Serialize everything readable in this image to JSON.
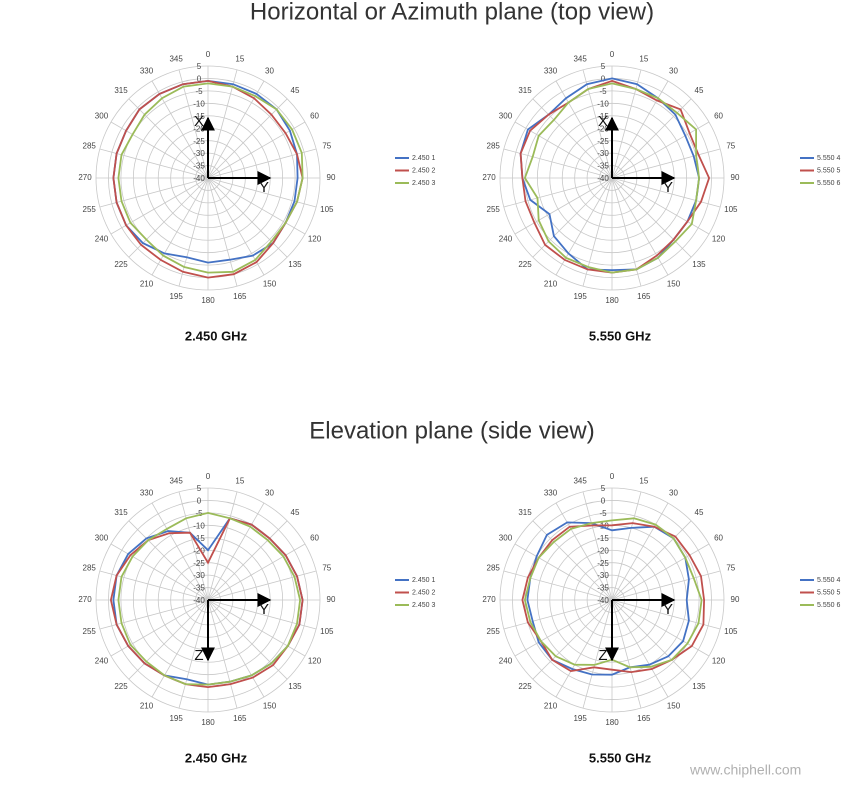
{
  "headings": [
    "Horizontal or Azimuth plane (top view)",
    "Elevation plane (side view)"
  ],
  "watermark": "www.chiphell.com",
  "chart_data": [
    {
      "type": "polar",
      "title": "2.450 GHz",
      "x": [
        0,
        15,
        30,
        45,
        60,
        75,
        90,
        105,
        120,
        135,
        150,
        165,
        180,
        195,
        210,
        225,
        240,
        255,
        270,
        285,
        300,
        315,
        330,
        345
      ],
      "xticks": [
        0,
        15,
        30,
        45,
        60,
        75,
        90,
        105,
        120,
        135,
        150,
        165,
        180,
        195,
        210,
        225,
        240,
        255,
        270,
        285,
        300,
        315,
        330,
        345
      ],
      "ylim": [
        -40,
        5
      ],
      "yticks": [
        5,
        0,
        -5,
        -10,
        -15,
        -20,
        -25,
        -30,
        -35,
        -40
      ],
      "grid": true,
      "axis_arrows": {
        "up": "X",
        "right": "Y"
      },
      "series": [
        {
          "name": "2.450 1",
          "color": "#4472c4",
          "values": [
            -1,
            -1,
            -1,
            -1,
            -2,
            -3,
            -4,
            -4,
            -4,
            -3,
            -4,
            -6,
            -6,
            -7,
            -5,
            -3,
            -2,
            -2,
            -2,
            -2,
            -2,
            -1,
            -1,
            -1
          ]
        },
        {
          "name": "2.450 2",
          "color": "#c0504d",
          "values": [
            -1,
            -2,
            -3,
            -4,
            -4,
            -3,
            -2,
            -3,
            -4,
            -3,
            -1,
            0,
            0,
            -1,
            -2,
            -2,
            -2,
            -2,
            -2,
            -2,
            -2,
            -1,
            -1,
            -1
          ]
        },
        {
          "name": "2.450 3",
          "color": "#9bbb59",
          "values": [
            -2,
            -2,
            -2,
            -1,
            -1,
            -1,
            -2,
            -3,
            -4,
            -4,
            -2,
            -1,
            -2,
            -3,
            -4,
            -5,
            -4,
            -4,
            -4,
            -4,
            -5,
            -4,
            -3,
            -2
          ]
        }
      ]
    },
    {
      "type": "polar",
      "title": "5.550 GHz",
      "x": [
        0,
        15,
        30,
        45,
        60,
        75,
        90,
        105,
        120,
        135,
        150,
        165,
        180,
        195,
        210,
        225,
        240,
        255,
        270,
        285,
        300,
        315,
        330,
        345
      ],
      "xticks": [
        0,
        15,
        30,
        45,
        60,
        75,
        90,
        105,
        120,
        135,
        150,
        165,
        180,
        195,
        210,
        225,
        240,
        255,
        270,
        285,
        300,
        315,
        330,
        345
      ],
      "ylim": [
        -40,
        5
      ],
      "yticks": [
        5,
        0,
        -5,
        -10,
        -15,
        -20,
        -25,
        -30,
        -35,
        -40
      ],
      "grid": true,
      "axis_arrows": {
        "up": "X",
        "right": "Y"
      },
      "series": [
        {
          "name": "5.550 4",
          "color": "#4472c4",
          "values": [
            0,
            -1,
            -3,
            -4,
            -6,
            -6,
            -5,
            -5,
            -5,
            -5,
            -3,
            -2,
            -3,
            -2,
            -5,
            -7,
            -11,
            -6,
            -4,
            -2,
            -1,
            -4,
            -3,
            -1
          ]
        },
        {
          "name": "5.550 5",
          "color": "#c0504d",
          "values": [
            -1,
            -3,
            -4,
            -1,
            -4,
            -4,
            -1,
            -3,
            -5,
            -5,
            -4,
            -2,
            -2,
            -2,
            -2,
            -2,
            -4,
            -4,
            -4,
            -2,
            -2,
            -4,
            -5,
            -3
          ]
        },
        {
          "name": "5.550 6",
          "color": "#9bbb59",
          "values": [
            -2,
            -3,
            -3,
            -3,
            -1,
            -5,
            -5,
            -5,
            -3,
            -4,
            -3,
            -2,
            -2,
            -3,
            -3,
            -4,
            -6,
            -9,
            -5,
            -7,
            -6,
            -7,
            -5,
            -3
          ]
        }
      ]
    },
    {
      "type": "polar",
      "title": "2.450 GHz",
      "x": [
        0,
        15,
        30,
        45,
        60,
        75,
        90,
        105,
        120,
        135,
        150,
        165,
        180,
        195,
        210,
        225,
        240,
        255,
        270,
        285,
        300,
        315,
        330,
        345
      ],
      "xticks": [
        0,
        15,
        30,
        45,
        60,
        75,
        90,
        105,
        120,
        135,
        150,
        165,
        180,
        195,
        210,
        225,
        240,
        255,
        270,
        285,
        300,
        315,
        330,
        345
      ],
      "ylim": [
        -40,
        5
      ],
      "yticks": [
        5,
        0,
        -5,
        -10,
        -15,
        -20,
        -25,
        -30,
        -35,
        -40
      ],
      "grid": true,
      "axis_arrows": {
        "right": "Y",
        "down": "Z"
      },
      "series": [
        {
          "name": "2.450 1",
          "color": "#4472c4",
          "values": [
            -20,
            -6,
            -5,
            -5,
            -4,
            -3,
            -2,
            -2,
            -3,
            -4,
            -5,
            -6,
            -6,
            -7,
            -5,
            -4,
            -3,
            -2,
            -2,
            -2,
            -3,
            -5,
            -8,
            -12
          ]
        },
        {
          "name": "2.450 2",
          "color": "#c0504d",
          "values": [
            -25,
            -6,
            -5,
            -5,
            -4,
            -3,
            -2,
            -2,
            -3,
            -3,
            -4,
            -5,
            -5,
            -5,
            -5,
            -4,
            -3,
            -2,
            -1,
            -2,
            -4,
            -6,
            -9,
            -12
          ]
        },
        {
          "name": "2.450 3",
          "color": "#9bbb59",
          "values": [
            -5,
            -6,
            -6,
            -6,
            -5,
            -4,
            -3,
            -3,
            -3,
            -4,
            -5,
            -6,
            -6,
            -5,
            -5,
            -5,
            -4,
            -4,
            -4,
            -4,
            -5,
            -6,
            -7,
            -6
          ]
        }
      ]
    },
    {
      "type": "polar",
      "title": "5.550 GHz",
      "x": [
        0,
        15,
        30,
        45,
        60,
        75,
        90,
        105,
        120,
        135,
        150,
        165,
        180,
        195,
        210,
        225,
        240,
        255,
        270,
        285,
        300,
        315,
        330,
        345
      ],
      "xticks": [
        0,
        15,
        30,
        45,
        60,
        75,
        90,
        105,
        120,
        135,
        150,
        165,
        180,
        195,
        210,
        225,
        240,
        255,
        270,
        285,
        300,
        315,
        330,
        345
      ],
      "ylim": [
        -40,
        5
      ],
      "yticks": [
        5,
        0,
        -5,
        -10,
        -15,
        -20,
        -25,
        -30,
        -35,
        -40
      ],
      "grid": true,
      "axis_arrows": {
        "right": "Y",
        "down": "Z"
      },
      "series": [
        {
          "name": "5.550 4",
          "color": "#4472c4",
          "values": [
            -12,
            -10,
            -6,
            -5,
            -6,
            -8,
            -10,
            -8,
            -7,
            -8,
            -10,
            -12,
            -10,
            -9,
            -8,
            -6,
            -6,
            -7,
            -6,
            -6,
            -5,
            -3,
            -4,
            -8
          ]
        },
        {
          "name": "5.550 5",
          "color": "#c0504d",
          "values": [
            -10,
            -8,
            -6,
            -4,
            -4,
            -3,
            -3,
            -2,
            -3,
            -6,
            -8,
            -10,
            -12,
            -12,
            -7,
            -6,
            -7,
            -5,
            -4,
            -5,
            -6,
            -6,
            -6,
            -9
          ]
        },
        {
          "name": "5.550 6",
          "color": "#9bbb59",
          "values": [
            -8,
            -6,
            -5,
            -5,
            -6,
            -6,
            -4,
            -4,
            -5,
            -6,
            -9,
            -12,
            -16,
            -13,
            -10,
            -8,
            -7,
            -6,
            -5,
            -6,
            -6,
            -7,
            -7,
            -8
          ]
        }
      ]
    }
  ]
}
